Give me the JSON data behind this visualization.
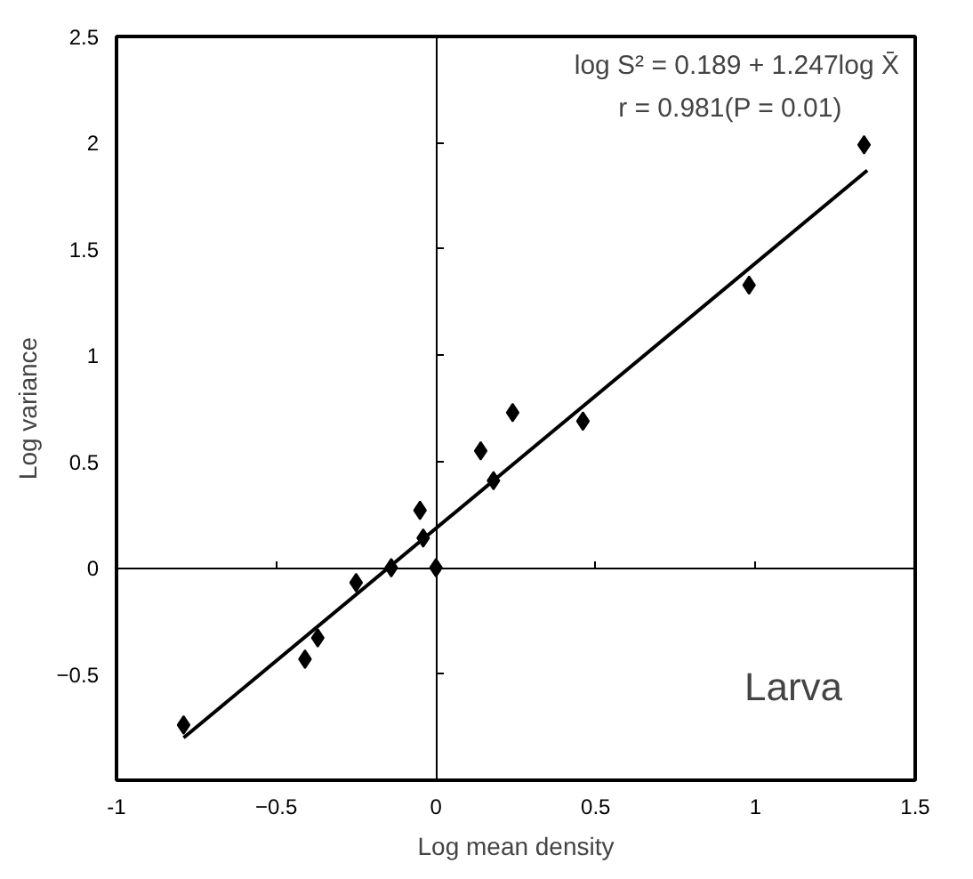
{
  "chart_data": {
    "type": "scatter",
    "xlabel": "Log mean density",
    "ylabel": "Log variance",
    "annotations": [
      "log S² = 0.189 + 1.247log X̄",
      "r = 0.981(P = 0.01)",
      "Larva"
    ],
    "xlim": [
      -1,
      1.5
    ],
    "ylim": [
      -1,
      2.5
    ],
    "xticks": [
      {
        "value": -1,
        "label": "-1"
      },
      -0.5,
      0,
      0.5,
      1,
      1.5
    ],
    "yticks": [
      -0.5,
      0,
      0.5,
      1,
      1.5,
      2,
      2.5
    ],
    "marker": "diamond",
    "series": [
      {
        "color": "#000000",
        "x": [
          -0.79,
          -0.41,
          -0.37,
          -0.25,
          -0.14,
          0.0,
          -0.05,
          -0.04,
          0.14,
          0.18,
          0.24,
          0.46,
          0.98,
          1.34
        ],
        "values": [
          -0.74,
          -0.43,
          -0.33,
          -0.07,
          0.0,
          0.0,
          0.27,
          0.14,
          0.55,
          0.41,
          0.73,
          0.69,
          1.33,
          1.99
        ]
      },
      {
        "type": "line",
        "color": "#000000",
        "line_style": "solid",
        "marker": "none",
        "x": [
          -0.79,
          1.35
        ],
        "values": [
          -0.8,
          1.87
        ]
      }
    ]
  }
}
